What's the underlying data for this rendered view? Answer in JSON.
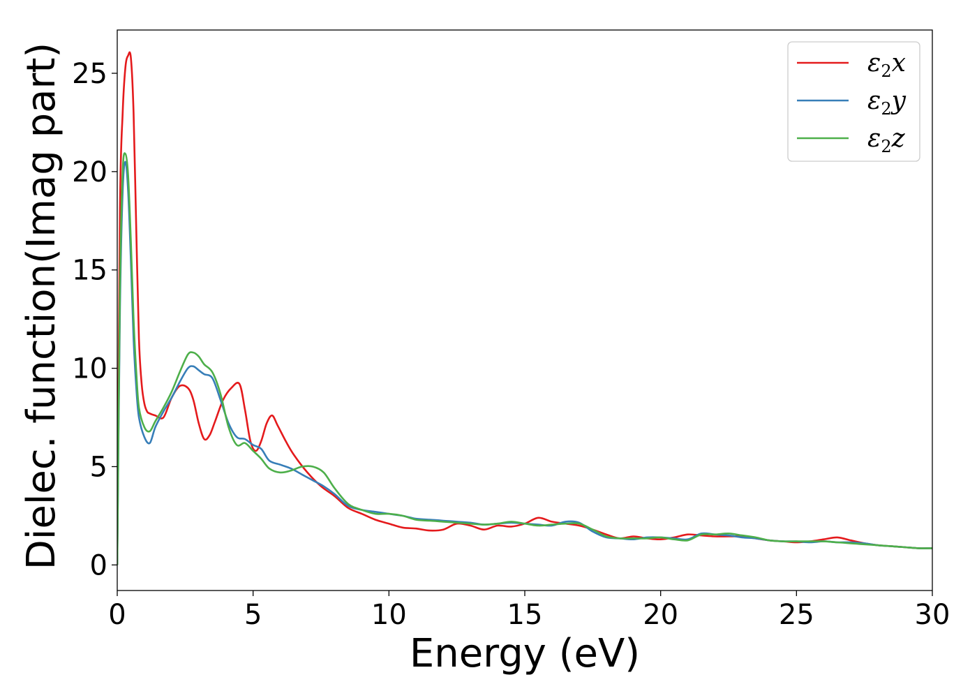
{
  "chart_data": {
    "type": "line",
    "xlabel": "Energy (eV)",
    "ylabel": "Dielec. function(Imag part)",
    "xlim": [
      0,
      30
    ],
    "ylim": [
      -1.3,
      27.2
    ],
    "xticks": [
      0,
      5,
      10,
      15,
      20,
      25,
      30
    ],
    "yticks": [
      0,
      5,
      10,
      15,
      20,
      25
    ],
    "grid": false,
    "legend_position": "top-right",
    "series": [
      {
        "name": "ε₂x",
        "legend_base": "ε",
        "legend_sub": "2",
        "legend_suffix": "x",
        "color": "#e41a1c",
        "x": [
          0,
          0.1,
          0.2,
          0.3,
          0.4,
          0.5,
          0.6,
          0.7,
          0.8,
          0.9,
          1.0,
          1.1,
          1.2,
          1.4,
          1.7,
          2.0,
          2.3,
          2.6,
          2.8,
          3.0,
          3.2,
          3.4,
          3.6,
          3.9,
          4.2,
          4.5,
          4.7,
          4.9,
          5.1,
          5.3,
          5.5,
          5.7,
          5.9,
          6.2,
          6.5,
          7.0,
          7.5,
          8.0,
          8.5,
          9.0,
          9.5,
          10.0,
          10.5,
          11.0,
          11.5,
          12.0,
          12.5,
          13.0,
          13.5,
          14.0,
          14.5,
          15.0,
          15.5,
          16.0,
          16.5,
          17.0,
          17.5,
          18.0,
          18.5,
          19.0,
          19.5,
          20.0,
          20.5,
          21.0,
          21.5,
          22.0,
          22.5,
          23.0,
          23.5,
          24.0,
          24.5,
          25.0,
          25.5,
          26.0,
          26.5,
          27.0,
          27.5,
          28.0,
          28.5,
          29.0,
          29.5,
          30.0
        ],
        "y": [
          0,
          18,
          23,
          25.3,
          25.9,
          25.8,
          23,
          17,
          11.5,
          9.2,
          8.2,
          7.8,
          7.7,
          7.6,
          7.5,
          8.5,
          9.1,
          9.0,
          8.4,
          7.2,
          6.4,
          6.6,
          7.3,
          8.4,
          9.0,
          9.2,
          7.9,
          6.3,
          5.8,
          6.3,
          7.2,
          7.6,
          7.1,
          6.3,
          5.6,
          4.7,
          4.0,
          3.5,
          2.9,
          2.6,
          2.3,
          2.1,
          1.9,
          1.85,
          1.75,
          1.8,
          2.1,
          2.0,
          1.8,
          2.0,
          1.95,
          2.1,
          2.4,
          2.2,
          2.1,
          2.0,
          1.8,
          1.55,
          1.35,
          1.45,
          1.35,
          1.3,
          1.4,
          1.55,
          1.5,
          1.45,
          1.45,
          1.45,
          1.35,
          1.25,
          1.2,
          1.15,
          1.2,
          1.3,
          1.4,
          1.25,
          1.1,
          1.0,
          0.95,
          0.9,
          0.85,
          0.85
        ]
      },
      {
        "name": "ε₂y",
        "legend_base": "ε",
        "legend_sub": "2",
        "legend_suffix": "y",
        "color": "#377eb8",
        "x": [
          0,
          0.1,
          0.2,
          0.3,
          0.4,
          0.5,
          0.6,
          0.7,
          0.8,
          1.0,
          1.2,
          1.4,
          1.7,
          2.0,
          2.3,
          2.6,
          2.8,
          3.0,
          3.2,
          3.5,
          3.8,
          4.1,
          4.4,
          4.7,
          5.0,
          5.3,
          5.6,
          6.0,
          6.4,
          6.8,
          7.2,
          7.6,
          8.0,
          8.5,
          9.0,
          9.5,
          10.0,
          10.5,
          11.0,
          11.5,
          12.0,
          12.5,
          13.0,
          13.5,
          14.0,
          14.5,
          15.0,
          15.5,
          16.0,
          16.5,
          17.0,
          17.5,
          18.0,
          18.5,
          19.0,
          19.5,
          20.0,
          20.5,
          21.0,
          21.5,
          22.0,
          22.5,
          23.0,
          23.5,
          24.0,
          24.5,
          25.0,
          25.5,
          26.0,
          26.5,
          27.0,
          27.5,
          28.0,
          28.5,
          29.0,
          29.5,
          30.0
        ],
        "y": [
          0,
          13,
          19,
          20.5,
          19,
          15.5,
          11.5,
          9.0,
          7.5,
          6.5,
          6.2,
          7.0,
          7.8,
          8.5,
          9.3,
          10.0,
          10.1,
          9.9,
          9.7,
          9.5,
          8.4,
          7.2,
          6.5,
          6.4,
          6.1,
          5.9,
          5.3,
          5.1,
          4.9,
          4.6,
          4.3,
          4.0,
          3.6,
          3.0,
          2.8,
          2.7,
          2.6,
          2.5,
          2.35,
          2.3,
          2.25,
          2.2,
          2.15,
          2.05,
          2.1,
          2.15,
          2.1,
          2.05,
          2.0,
          2.2,
          2.15,
          1.7,
          1.4,
          1.35,
          1.3,
          1.4,
          1.4,
          1.35,
          1.3,
          1.6,
          1.55,
          1.5,
          1.4,
          1.35,
          1.25,
          1.2,
          1.2,
          1.15,
          1.2,
          1.15,
          1.15,
          1.1,
          1.0,
          0.95,
          0.9,
          0.85,
          0.85
        ]
      },
      {
        "name": "ε₂z",
        "legend_base": "ε",
        "legend_sub": "2",
        "legend_suffix": "z",
        "color": "#4daf4a",
        "x": [
          0,
          0.1,
          0.2,
          0.3,
          0.4,
          0.5,
          0.6,
          0.7,
          0.8,
          1.0,
          1.2,
          1.4,
          1.7,
          2.0,
          2.3,
          2.6,
          2.8,
          3.0,
          3.2,
          3.5,
          3.8,
          4.1,
          4.4,
          4.7,
          5.0,
          5.3,
          5.6,
          6.0,
          6.4,
          6.8,
          7.2,
          7.6,
          8.0,
          8.5,
          9.0,
          9.5,
          10.0,
          10.5,
          11.0,
          11.5,
          12.0,
          12.5,
          13.0,
          13.5,
          14.0,
          14.5,
          15.0,
          15.5,
          16.0,
          16.5,
          17.0,
          17.5,
          18.0,
          18.5,
          19.0,
          19.5,
          20.0,
          20.5,
          21.0,
          21.5,
          22.0,
          22.5,
          23.0,
          23.5,
          24.0,
          24.5,
          25.0,
          25.5,
          26.0,
          26.5,
          27.0,
          27.5,
          28.0,
          28.5,
          29.0,
          29.5,
          30.0
        ],
        "y": [
          0,
          14,
          20,
          20.9,
          19.8,
          16.5,
          12.5,
          9.8,
          8.0,
          7.0,
          6.8,
          7.3,
          8.0,
          8.8,
          9.8,
          10.7,
          10.8,
          10.6,
          10.2,
          9.8,
          8.7,
          7.0,
          6.1,
          6.2,
          5.8,
          5.4,
          4.9,
          4.7,
          4.8,
          5.0,
          5.0,
          4.7,
          3.9,
          3.1,
          2.8,
          2.6,
          2.6,
          2.5,
          2.3,
          2.25,
          2.2,
          2.15,
          2.1,
          2.05,
          2.1,
          2.2,
          2.1,
          2.0,
          2.05,
          2.1,
          2.1,
          1.8,
          1.45,
          1.35,
          1.35,
          1.35,
          1.4,
          1.3,
          1.25,
          1.55,
          1.55,
          1.6,
          1.5,
          1.4,
          1.25,
          1.2,
          1.2,
          1.2,
          1.2,
          1.15,
          1.1,
          1.05,
          1.0,
          0.95,
          0.9,
          0.85,
          0.85
        ]
      }
    ]
  }
}
